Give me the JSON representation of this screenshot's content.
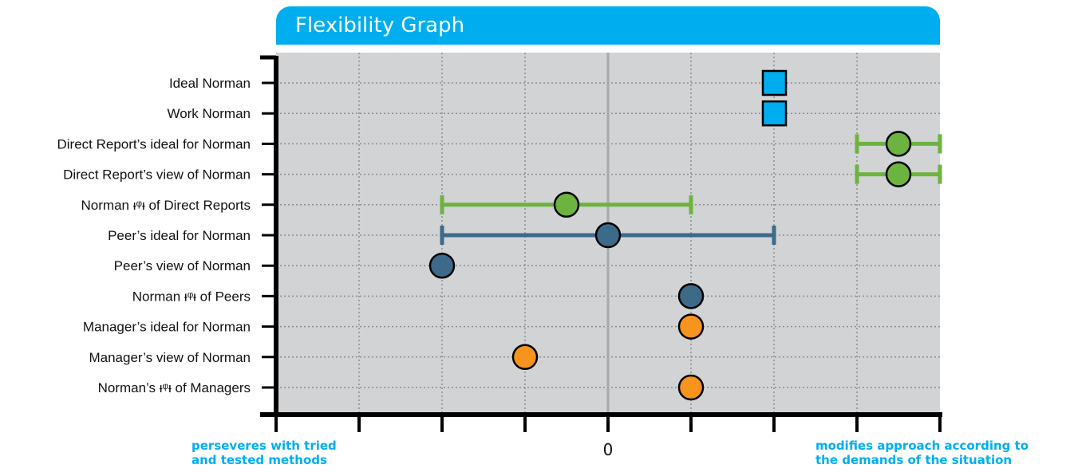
{
  "title": "Flexibility Graph",
  "colors": {
    "title_bg": "#00adef",
    "plot_bg": "#d1d3d4",
    "blue": "#00adef",
    "green": "#6db33f",
    "slate": "#3e6a8a",
    "orange": "#f7941d",
    "axis": "#000000",
    "center_line": "#a7a9ac"
  },
  "chart_data": {
    "type": "scatter",
    "title": "Flexibility Graph",
    "xlim": [
      -4,
      4
    ],
    "x_tick_labels": [
      {
        "x": 0,
        "label": "0"
      }
    ],
    "x_ticks": [
      -4,
      -3,
      -2,
      -1,
      0,
      1,
      2,
      3,
      4
    ],
    "grid": true,
    "axis_notes": {
      "left": "perseveres with tried and tested methods",
      "right": "modifies approach according to the demands of the situation"
    },
    "rows": [
      {
        "label": "Ideal Norman",
        "x": 2,
        "marker": "square",
        "color": "#00adef"
      },
      {
        "label": "Work Norman",
        "x": 2,
        "marker": "square",
        "color": "#00adef"
      },
      {
        "label": "Direct Report’s ideal for Norman",
        "x": 3.5,
        "range": [
          3,
          4
        ],
        "marker": "circle",
        "color": "#6db33f"
      },
      {
        "label": "Direct Report’s view of Norman",
        "x": 3.5,
        "range": [
          3,
          4
        ],
        "marker": "circle",
        "color": "#6db33f"
      },
      {
        "label": "Norman ᵻᵠᵻ of Direct Reports",
        "x": -0.5,
        "range": [
          -2,
          1
        ],
        "marker": "circle",
        "color": "#6db33f"
      },
      {
        "label": "Peer’s ideal for Norman",
        "x": 0,
        "range": [
          -2,
          2
        ],
        "marker": "circle",
        "color": "#3e6a8a"
      },
      {
        "label": "Peer’s view of Norman",
        "x": -2,
        "marker": "circle",
        "color": "#3e6a8a"
      },
      {
        "label": "Norman ᵻᵠᵻ of Peers",
        "x": 1,
        "marker": "circle",
        "color": "#3e6a8a"
      },
      {
        "label": "Manager’s ideal for Norman",
        "x": 1,
        "marker": "circle",
        "color": "#f7941d"
      },
      {
        "label": "Manager’s view of Norman",
        "x": -1,
        "marker": "circle",
        "color": "#f7941d"
      },
      {
        "label": "Norman’s ᵻᵠᵻ of Managers",
        "x": 1,
        "marker": "circle",
        "color": "#f7941d"
      }
    ]
  }
}
